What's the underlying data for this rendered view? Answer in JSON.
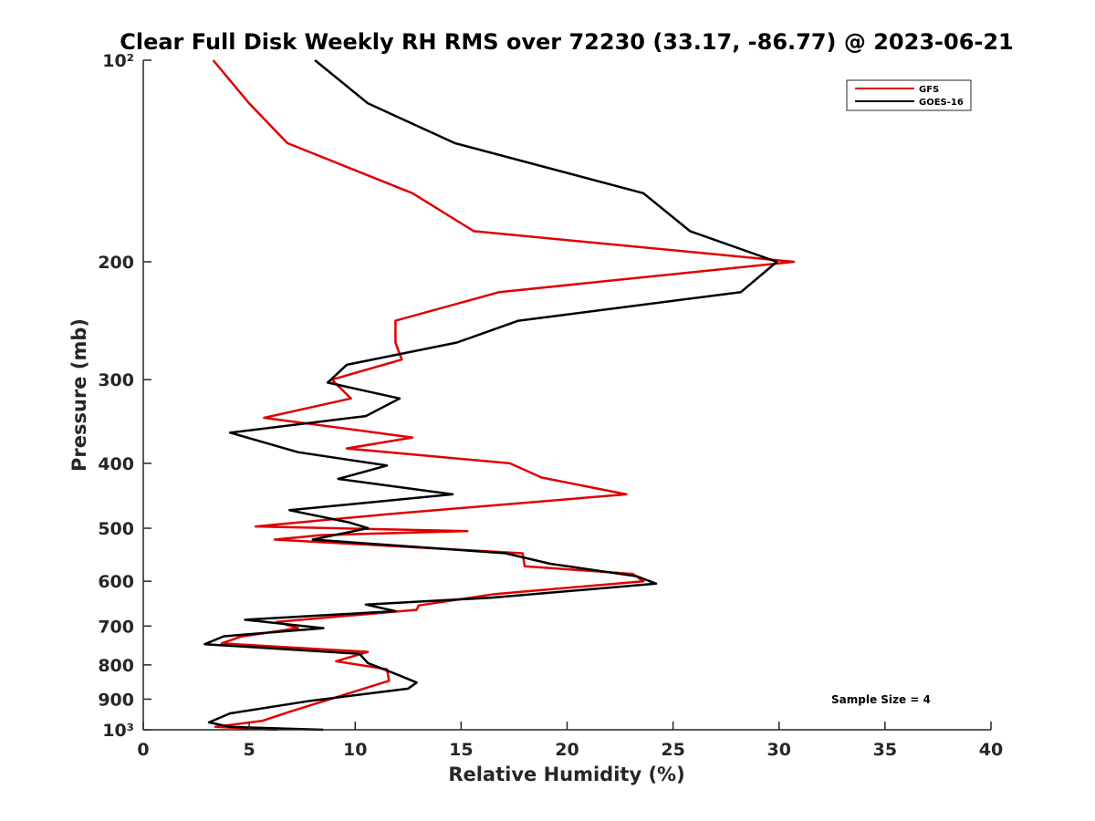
{
  "chart_data": {
    "type": "line",
    "title": "Clear Full Disk Weekly RH RMS over 72230 (33.17, -86.77) @ 2023-06-21",
    "xlabel": "Relative Humidity (%)",
    "ylabel": "Pressure (mb)",
    "xlim": [
      0,
      40
    ],
    "ylim": [
      100,
      1000
    ],
    "yscale": "log",
    "y_reversed": true,
    "grid": false,
    "legend_position": "top-right",
    "x_ticks": [
      0,
      5,
      10,
      15,
      20,
      25,
      30,
      35,
      40
    ],
    "x_tick_labels": [
      "0",
      "5",
      "10",
      "15",
      "20",
      "25",
      "30",
      "35",
      "40"
    ],
    "y_ticks": [
      100,
      200,
      300,
      400,
      500,
      600,
      700,
      800,
      900,
      1000
    ],
    "y_tick_labels": [
      "10²",
      "200",
      "300",
      "400",
      "500",
      "600",
      "700",
      "800",
      "900",
      "10³"
    ],
    "annotation": "Sample Size = 4",
    "series": [
      {
        "name": "GFS",
        "color": "#e00000",
        "points": [
          [
            3.3,
            100
          ],
          [
            5.0,
            116
          ],
          [
            6.8,
            133
          ],
          [
            12.7,
            158
          ],
          [
            15.6,
            180
          ],
          [
            30.7,
            200
          ],
          [
            16.8,
            222
          ],
          [
            11.9,
            245
          ],
          [
            11.9,
            264
          ],
          [
            12.2,
            280
          ],
          [
            8.9,
            300
          ],
          [
            9.8,
            320
          ],
          [
            5.7,
            342
          ],
          [
            12.7,
            366
          ],
          [
            9.6,
            380
          ],
          [
            17.3,
            400
          ],
          [
            18.8,
            420
          ],
          [
            22.8,
            445
          ],
          [
            12.0,
            475
          ],
          [
            5.3,
            497
          ],
          [
            15.3,
            505
          ],
          [
            8.4,
            512
          ],
          [
            6.2,
            520
          ],
          [
            17.9,
            545
          ],
          [
            18.0,
            570
          ],
          [
            23.1,
            585
          ],
          [
            23.6,
            600
          ],
          [
            16.6,
            627
          ],
          [
            13.0,
            652
          ],
          [
            12.9,
            662
          ],
          [
            6.3,
            690
          ],
          [
            7.3,
            705
          ],
          [
            4.6,
            726
          ],
          [
            3.7,
            743
          ],
          [
            10.6,
            765
          ],
          [
            9.1,
            790
          ],
          [
            11.5,
            812
          ],
          [
            11.6,
            845
          ],
          [
            9.3,
            890
          ],
          [
            6.9,
            940
          ],
          [
            5.6,
            970
          ],
          [
            3.4,
            990
          ],
          [
            6.3,
            1000
          ]
        ]
      },
      {
        "name": "GOES-16",
        "color": "#000000",
        "points": [
          [
            8.1,
            100
          ],
          [
            10.6,
            116
          ],
          [
            14.7,
            133
          ],
          [
            23.6,
            158
          ],
          [
            25.8,
            180
          ],
          [
            29.9,
            200
          ],
          [
            28.2,
            222
          ],
          [
            17.7,
            245
          ],
          [
            14.8,
            264
          ],
          [
            9.6,
            285
          ],
          [
            8.7,
            303
          ],
          [
            12.1,
            320
          ],
          [
            10.5,
            340
          ],
          [
            4.1,
            360
          ],
          [
            7.3,
            385
          ],
          [
            11.5,
            403
          ],
          [
            9.2,
            422
          ],
          [
            14.6,
            445
          ],
          [
            6.9,
            470
          ],
          [
            9.7,
            490
          ],
          [
            10.6,
            500
          ],
          [
            8.0,
            520
          ],
          [
            17.1,
            545
          ],
          [
            19.2,
            565
          ],
          [
            23.3,
            590
          ],
          [
            24.2,
            605
          ],
          [
            16.4,
            635
          ],
          [
            10.5,
            650
          ],
          [
            11.9,
            665
          ],
          [
            4.8,
            685
          ],
          [
            8.5,
            705
          ],
          [
            3.8,
            725
          ],
          [
            2.9,
            745
          ],
          [
            10.2,
            770
          ],
          [
            10.6,
            795
          ],
          [
            11.9,
            825
          ],
          [
            12.9,
            850
          ],
          [
            12.5,
            868
          ],
          [
            7.9,
            905
          ],
          [
            4.1,
            945
          ],
          [
            3.1,
            975
          ],
          [
            4.1,
            990
          ],
          [
            8.5,
            1000
          ]
        ]
      }
    ]
  }
}
